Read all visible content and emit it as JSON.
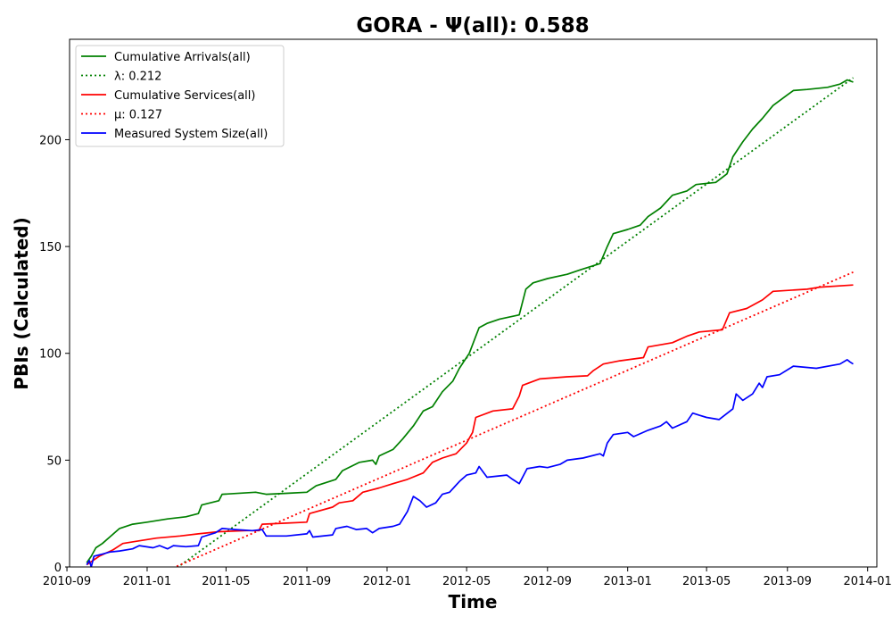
{
  "chart_data": {
    "type": "line",
    "title": "GORA -  Ψ(all): 0.588",
    "xlabel": "Time",
    "ylabel": "PBIs (Calculated)",
    "ylim": [
      0,
      247
    ],
    "xlim": [
      "2010-09-05",
      "2014-01-15"
    ],
    "x_ticks": [
      "2010-09",
      "2011-01",
      "2011-05",
      "2011-09",
      "2012-01",
      "2012-05",
      "2012-09",
      "2013-01",
      "2013-05",
      "2013-09",
      "2014-01"
    ],
    "y_ticks": [
      0,
      50,
      100,
      150,
      200
    ],
    "grid": false,
    "legend_position": "top-left",
    "series": [
      {
        "name": "Cumulative Arrivals(all)",
        "color": "#008000",
        "style": "solid",
        "points": [
          [
            "2010-10-01",
            2
          ],
          [
            "2010-10-08",
            5
          ],
          [
            "2010-10-15",
            9
          ],
          [
            "2010-10-25",
            11
          ],
          [
            "2010-11-05",
            14
          ],
          [
            "2010-11-20",
            18
          ],
          [
            "2010-12-10",
            20
          ],
          [
            "2011-01-01",
            21
          ],
          [
            "2011-02-01",
            22.5
          ],
          [
            "2011-03-01",
            23.5
          ],
          [
            "2011-03-20",
            25
          ],
          [
            "2011-03-25",
            29
          ],
          [
            "2011-04-20",
            31
          ],
          [
            "2011-04-25",
            34
          ],
          [
            "2011-06-15",
            35
          ],
          [
            "2011-07-01",
            34
          ],
          [
            "2011-08-01",
            34.5
          ],
          [
            "2011-09-01",
            35
          ],
          [
            "2011-09-15",
            38
          ],
          [
            "2011-10-15",
            41
          ],
          [
            "2011-10-25",
            45
          ],
          [
            "2011-11-20",
            49
          ],
          [
            "2011-12-10",
            50
          ],
          [
            "2011-12-15",
            48
          ],
          [
            "2011-12-20",
            52
          ],
          [
            "2012-01-10",
            55
          ],
          [
            "2012-01-25",
            60
          ],
          [
            "2012-02-10",
            66
          ],
          [
            "2012-02-25",
            73
          ],
          [
            "2012-03-10",
            75
          ],
          [
            "2012-03-25",
            82
          ],
          [
            "2012-04-10",
            87
          ],
          [
            "2012-04-20",
            93
          ],
          [
            "2012-05-05",
            100
          ],
          [
            "2012-05-15",
            108
          ],
          [
            "2012-05-20",
            112
          ],
          [
            "2012-06-01",
            114
          ],
          [
            "2012-06-20",
            116
          ],
          [
            "2012-07-20",
            118
          ],
          [
            "2012-07-30",
            130
          ],
          [
            "2012-08-10",
            133
          ],
          [
            "2012-09-01",
            135
          ],
          [
            "2012-10-01",
            137
          ],
          [
            "2012-10-20",
            139
          ],
          [
            "2012-11-20",
            142
          ],
          [
            "2012-12-01",
            150
          ],
          [
            "2012-12-10",
            156
          ],
          [
            "2013-01-01",
            158
          ],
          [
            "2013-01-20",
            160
          ],
          [
            "2013-02-01",
            164
          ],
          [
            "2013-02-20",
            168
          ],
          [
            "2013-03-10",
            174
          ],
          [
            "2013-04-01",
            176
          ],
          [
            "2013-04-15",
            179
          ],
          [
            "2013-05-15",
            180
          ],
          [
            "2013-06-01",
            184
          ],
          [
            "2013-06-10",
            192
          ],
          [
            "2013-06-25",
            199
          ],
          [
            "2013-07-10",
            205
          ],
          [
            "2013-07-25",
            210
          ],
          [
            "2013-08-10",
            216
          ],
          [
            "2013-09-01",
            221
          ],
          [
            "2013-09-10",
            223
          ],
          [
            "2013-10-01",
            223.5
          ],
          [
            "2013-11-01",
            224.5
          ],
          [
            "2013-11-20",
            226
          ],
          [
            "2013-12-01",
            228
          ],
          [
            "2013-12-10",
            227
          ]
        ]
      },
      {
        "name": "λ: 0.212",
        "color": "#008000",
        "style": "dotted",
        "points": [
          [
            "2010-10-01",
            -31
          ],
          [
            "2013-12-10",
            229
          ]
        ]
      },
      {
        "name": "Cumulative Services(all)",
        "color": "#ff0000",
        "style": "solid",
        "points": [
          [
            "2010-10-01",
            1
          ],
          [
            "2010-10-20",
            5
          ],
          [
            "2010-11-10",
            8
          ],
          [
            "2010-11-25",
            11
          ],
          [
            "2010-12-15",
            12
          ],
          [
            "2011-01-15",
            13.5
          ],
          [
            "2011-02-20",
            14.5
          ],
          [
            "2011-03-20",
            15.5
          ],
          [
            "2011-04-20",
            16.5
          ],
          [
            "2011-06-01",
            17
          ],
          [
            "2011-06-20",
            17
          ],
          [
            "2011-06-25",
            20
          ],
          [
            "2011-08-01",
            20.5
          ],
          [
            "2011-09-01",
            21
          ],
          [
            "2011-09-05",
            25
          ],
          [
            "2011-10-10",
            28
          ],
          [
            "2011-10-20",
            30
          ],
          [
            "2011-11-10",
            31
          ],
          [
            "2011-11-25",
            35
          ],
          [
            "2011-12-20",
            37
          ],
          [
            "2012-01-10",
            39
          ],
          [
            "2012-02-01",
            41
          ],
          [
            "2012-02-25",
            44
          ],
          [
            "2012-03-10",
            49
          ],
          [
            "2012-03-25",
            51
          ],
          [
            "2012-04-15",
            53
          ],
          [
            "2012-05-01",
            58
          ],
          [
            "2012-05-10",
            63
          ],
          [
            "2012-05-15",
            70
          ],
          [
            "2012-06-10",
            73
          ],
          [
            "2012-07-10",
            74
          ],
          [
            "2012-07-20",
            80
          ],
          [
            "2012-07-25",
            85
          ],
          [
            "2012-08-20",
            88
          ],
          [
            "2012-10-01",
            89
          ],
          [
            "2012-11-01",
            89.5
          ],
          [
            "2012-11-10",
            92
          ],
          [
            "2012-11-25",
            95
          ],
          [
            "2012-12-20",
            96.5
          ],
          [
            "2013-01-25",
            98
          ],
          [
            "2013-02-01",
            103
          ],
          [
            "2013-03-10",
            105
          ],
          [
            "2013-04-01",
            108
          ],
          [
            "2013-04-20",
            110
          ],
          [
            "2013-05-25",
            111
          ],
          [
            "2013-06-05",
            119
          ],
          [
            "2013-07-01",
            121
          ],
          [
            "2013-07-25",
            125
          ],
          [
            "2013-08-10",
            129
          ],
          [
            "2013-10-01",
            130
          ],
          [
            "2013-10-20",
            131
          ],
          [
            "2013-12-10",
            132
          ]
        ]
      },
      {
        "name": "μ: 0.127",
        "color": "#ff0000",
        "style": "dotted",
        "points": [
          [
            "2010-10-01",
            -18
          ],
          [
            "2013-12-10",
            138
          ]
        ]
      },
      {
        "name": "Measured System Size(all)",
        "color": "#0000ff",
        "style": "solid",
        "points": [
          [
            "2010-10-01",
            1
          ],
          [
            "2010-10-05",
            3
          ],
          [
            "2010-10-08",
            0
          ],
          [
            "2010-10-12",
            5
          ],
          [
            "2010-10-25",
            6
          ],
          [
            "2010-11-05",
            7
          ],
          [
            "2010-11-20",
            7.5
          ],
          [
            "2010-12-10",
            8.5
          ],
          [
            "2010-12-20",
            10
          ],
          [
            "2011-01-10",
            9
          ],
          [
            "2011-01-20",
            10
          ],
          [
            "2011-02-01",
            8.5
          ],
          [
            "2011-02-10",
            10
          ],
          [
            "2011-03-01",
            9.5
          ],
          [
            "2011-03-20",
            10
          ],
          [
            "2011-03-25",
            14
          ],
          [
            "2011-04-15",
            16
          ],
          [
            "2011-04-25",
            18
          ],
          [
            "2011-05-15",
            17.5
          ],
          [
            "2011-06-10",
            17
          ],
          [
            "2011-06-25",
            17.5
          ],
          [
            "2011-07-01",
            14.5
          ],
          [
            "2011-08-01",
            14.5
          ],
          [
            "2011-09-01",
            15.5
          ],
          [
            "2011-09-05",
            17
          ],
          [
            "2011-09-10",
            14
          ],
          [
            "2011-10-10",
            15
          ],
          [
            "2011-10-15",
            18
          ],
          [
            "2011-11-01",
            19
          ],
          [
            "2011-11-15",
            17.5
          ],
          [
            "2011-12-01",
            18
          ],
          [
            "2011-12-10",
            16
          ],
          [
            "2011-12-20",
            18
          ],
          [
            "2012-01-10",
            19
          ],
          [
            "2012-01-20",
            20
          ],
          [
            "2012-02-01",
            26
          ],
          [
            "2012-02-10",
            33
          ],
          [
            "2012-02-20",
            31
          ],
          [
            "2012-03-01",
            28
          ],
          [
            "2012-03-15",
            30
          ],
          [
            "2012-03-25",
            34
          ],
          [
            "2012-04-05",
            35
          ],
          [
            "2012-04-20",
            40
          ],
          [
            "2012-05-01",
            43
          ],
          [
            "2012-05-15",
            44
          ],
          [
            "2012-05-20",
            47
          ],
          [
            "2012-06-01",
            42
          ],
          [
            "2012-07-01",
            43
          ],
          [
            "2012-07-10",
            41
          ],
          [
            "2012-07-20",
            39
          ],
          [
            "2012-08-01",
            46
          ],
          [
            "2012-08-20",
            47
          ],
          [
            "2012-09-01",
            46.5
          ],
          [
            "2012-09-20",
            48
          ],
          [
            "2012-10-01",
            50
          ],
          [
            "2012-10-25",
            51
          ],
          [
            "2012-11-20",
            53
          ],
          [
            "2012-11-25",
            52
          ],
          [
            "2012-12-01",
            58
          ],
          [
            "2012-12-10",
            62
          ],
          [
            "2013-01-01",
            63
          ],
          [
            "2013-01-10",
            61
          ],
          [
            "2013-02-01",
            64
          ],
          [
            "2013-02-20",
            66
          ],
          [
            "2013-03-01",
            68
          ],
          [
            "2013-03-10",
            65
          ],
          [
            "2013-04-01",
            68
          ],
          [
            "2013-04-10",
            72
          ],
          [
            "2013-04-20",
            71
          ],
          [
            "2013-05-01",
            70
          ],
          [
            "2013-05-20",
            69
          ],
          [
            "2013-06-10",
            74
          ],
          [
            "2013-06-15",
            81
          ],
          [
            "2013-06-25",
            78
          ],
          [
            "2013-07-10",
            81
          ],
          [
            "2013-07-20",
            86
          ],
          [
            "2013-07-25",
            84
          ],
          [
            "2013-08-01",
            89
          ],
          [
            "2013-08-20",
            90
          ],
          [
            "2013-09-10",
            94
          ],
          [
            "2013-10-15",
            93
          ],
          [
            "2013-11-20",
            95
          ],
          [
            "2013-12-01",
            97
          ],
          [
            "2013-12-05",
            96
          ],
          [
            "2013-12-10",
            95
          ]
        ]
      }
    ]
  }
}
